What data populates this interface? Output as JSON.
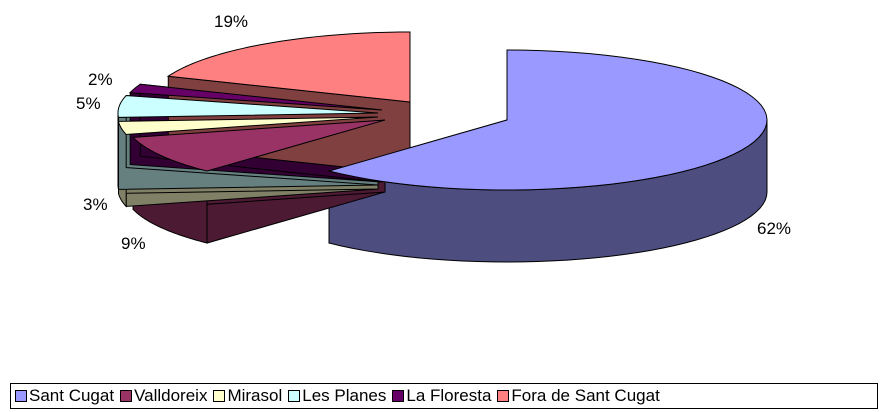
{
  "chart_data": {
    "type": "pie",
    "style": "3d-exploded",
    "labels": [
      "Sant Cugat",
      "Valldoreix",
      "Mirasol",
      "Les Planes",
      "La Floresta",
      "Fora de Sant Cugat"
    ],
    "values": [
      62,
      9,
      3,
      5,
      2,
      19
    ],
    "value_labels": [
      "62%",
      "9%",
      "3%",
      "5%",
      "2%",
      "19%"
    ],
    "colors": [
      "#9999FF",
      "#993366",
      "#FFFFCC",
      "#CCFFFF",
      "#660066",
      "#FF8080"
    ],
    "side_colors": [
      "#4D4D80",
      "#4D1A33",
      "#808066",
      "#668080",
      "#330033",
      "#804040"
    ],
    "legend_position": "bottom"
  }
}
